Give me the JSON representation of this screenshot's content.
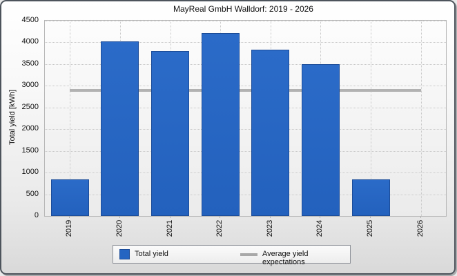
{
  "window": {
    "title": "MayReal GmbH Walldorf: 2019 - 2026"
  },
  "chart_data": {
    "type": "bar",
    "title": "MayReal GmbH Walldorf: 2019 - 2026",
    "categories": [
      "2019",
      "2020",
      "2021",
      "2022",
      "2023",
      "2024",
      "2025",
      "2026"
    ],
    "series": [
      {
        "name": "Total yield",
        "type": "bar",
        "values": [
          850,
          4030,
          3800,
          4220,
          3830,
          3500,
          850,
          0
        ]
      },
      {
        "name": "Average yield expectations",
        "type": "reference-line",
        "value": 2900
      }
    ],
    "xlabel": "",
    "ylabel": "Total yield [kWh]",
    "ylim": [
      0,
      4500
    ],
    "yticks": [
      0,
      500,
      1000,
      1500,
      2000,
      2500,
      3000,
      3500,
      4000,
      4500
    ],
    "grid": true,
    "legend_position": "bottom"
  },
  "legend": {
    "items": [
      {
        "label": "Total yield",
        "swatch": "bar"
      },
      {
        "label": "Average yield expectations",
        "swatch": "line"
      }
    ]
  },
  "colors": {
    "bar_fill": "#2565c2",
    "bar_border": "#1b4c99",
    "average_line": "#b2b2b2",
    "grid": "#c7c7c7",
    "text": "#111111"
  }
}
